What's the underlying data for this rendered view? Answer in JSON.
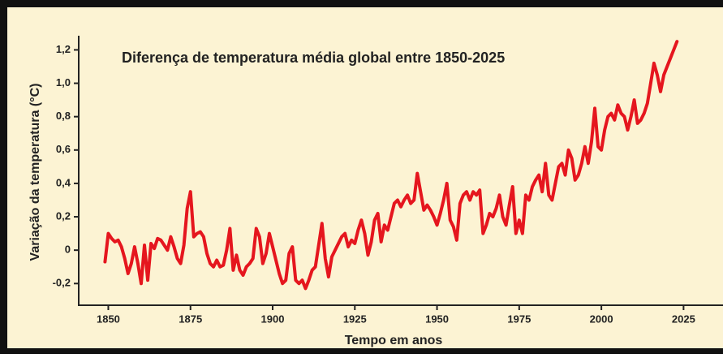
{
  "chart_data": {
    "type": "line",
    "title": "Diferença de temperatura média global entre 1850-2025",
    "x_label": "Tempo em anos",
    "y_label": "Variação da temperatura (°C)",
    "color": "#e5161e",
    "xlim": [
      1841,
      2037
    ],
    "ylim": [
      -0.33,
      1.28
    ],
    "xticks": [
      1850,
      1875,
      1900,
      1925,
      1950,
      1975,
      2000,
      2025
    ],
    "yticks": [
      {
        "value": -0.2,
        "label": "-0,2"
      },
      0,
      {
        "value": 0.2,
        "label": "0,2"
      },
      {
        "value": 0.4,
        "label": "0,4"
      },
      {
        "value": 0.6,
        "label": "0,6"
      },
      {
        "value": 0.8,
        "label": "0,8"
      },
      {
        "value": 1.0,
        "label": "1,0"
      },
      {
        "value": 1.2,
        "label": "1,2"
      }
    ],
    "x": [
      1849,
      1850,
      1851,
      1852,
      1853,
      1854,
      1855,
      1856,
      1857,
      1858,
      1859,
      1860,
      1861,
      1862,
      1863,
      1864,
      1865,
      1866,
      1867,
      1868,
      1869,
      1870,
      1871,
      1872,
      1873,
      1874,
      1875,
      1876,
      1877,
      1878,
      1879,
      1880,
      1881,
      1882,
      1883,
      1884,
      1885,
      1886,
      1887,
      1888,
      1889,
      1890,
      1891,
      1892,
      1893,
      1894,
      1895,
      1896,
      1897,
      1898,
      1899,
      1900,
      1901,
      1902,
      1903,
      1904,
      1905,
      1906,
      1907,
      1908,
      1909,
      1910,
      1911,
      1912,
      1913,
      1914,
      1915,
      1916,
      1917,
      1918,
      1919,
      1920,
      1921,
      1922,
      1923,
      1924,
      1925,
      1926,
      1927,
      1928,
      1929,
      1930,
      1931,
      1932,
      1933,
      1934,
      1935,
      1936,
      1937,
      1938,
      1939,
      1940,
      1941,
      1942,
      1943,
      1944,
      1945,
      1946,
      1947,
      1948,
      1949,
      1950,
      1951,
      1952,
      1953,
      1954,
      1955,
      1956,
      1957,
      1958,
      1959,
      1960,
      1961,
      1962,
      1963,
      1964,
      1965,
      1966,
      1967,
      1968,
      1969,
      1970,
      1971,
      1972,
      1973,
      1974,
      1975,
      1976,
      1977,
      1978,
      1979,
      1980,
      1981,
      1982,
      1983,
      1984,
      1985,
      1986,
      1987,
      1988,
      1989,
      1990,
      1991,
      1992,
      1993,
      1994,
      1995,
      1996,
      1997,
      1998,
      1999,
      2000,
      2001,
      2002,
      2003,
      2004,
      2005,
      2006,
      2007,
      2008,
      2009,
      2010,
      2011,
      2012,
      2013,
      2014,
      2015,
      2016,
      2017,
      2018,
      2019,
      2020,
      2021,
      2022,
      2023
    ],
    "values": [
      -0.07,
      0.1,
      0.07,
      0.05,
      0.06,
      0.02,
      -0.05,
      -0.14,
      -0.08,
      0.02,
      -0.08,
      -0.2,
      0.03,
      -0.18,
      0.04,
      0.01,
      0.07,
      0.06,
      0.03,
      0.0,
      0.08,
      0.02,
      -0.05,
      -0.08,
      0.03,
      0.25,
      0.35,
      0.08,
      0.1,
      0.11,
      0.08,
      -0.02,
      -0.08,
      -0.1,
      -0.06,
      -0.1,
      -0.09,
      0.0,
      0.13,
      -0.12,
      -0.03,
      -0.12,
      -0.15,
      -0.1,
      -0.08,
      -0.05,
      0.13,
      0.08,
      -0.08,
      -0.02,
      0.1,
      0.02,
      -0.06,
      -0.14,
      -0.2,
      -0.18,
      -0.02,
      0.02,
      -0.18,
      -0.2,
      -0.18,
      -0.23,
      -0.18,
      -0.12,
      -0.1,
      0.03,
      0.16,
      -0.05,
      -0.16,
      -0.04,
      0.0,
      0.04,
      0.08,
      0.1,
      0.02,
      0.06,
      0.04,
      0.12,
      0.18,
      0.1,
      -0.03,
      0.05,
      0.18,
      0.22,
      0.05,
      0.15,
      0.12,
      0.2,
      0.28,
      0.3,
      0.26,
      0.3,
      0.33,
      0.28,
      0.3,
      0.46,
      0.35,
      0.24,
      0.27,
      0.24,
      0.2,
      0.15,
      0.22,
      0.3,
      0.4,
      0.18,
      0.14,
      0.06,
      0.28,
      0.33,
      0.35,
      0.3,
      0.35,
      0.33,
      0.36,
      0.1,
      0.15,
      0.22,
      0.2,
      0.25,
      0.33,
      0.2,
      0.15,
      0.27,
      0.38,
      0.1,
      0.18,
      0.1,
      0.33,
      0.3,
      0.38,
      0.42,
      0.45,
      0.35,
      0.52,
      0.33,
      0.3,
      0.4,
      0.5,
      0.52,
      0.45,
      0.6,
      0.55,
      0.42,
      0.45,
      0.52,
      0.62,
      0.52,
      0.65,
      0.85,
      0.62,
      0.6,
      0.72,
      0.8,
      0.82,
      0.78,
      0.87,
      0.82,
      0.8,
      0.72,
      0.8,
      0.9,
      0.76,
      0.78,
      0.82,
      0.88,
      1.0,
      1.12,
      1.05,
      0.95,
      1.05,
      1.1,
      1.15,
      1.2,
      1.25
    ]
  }
}
